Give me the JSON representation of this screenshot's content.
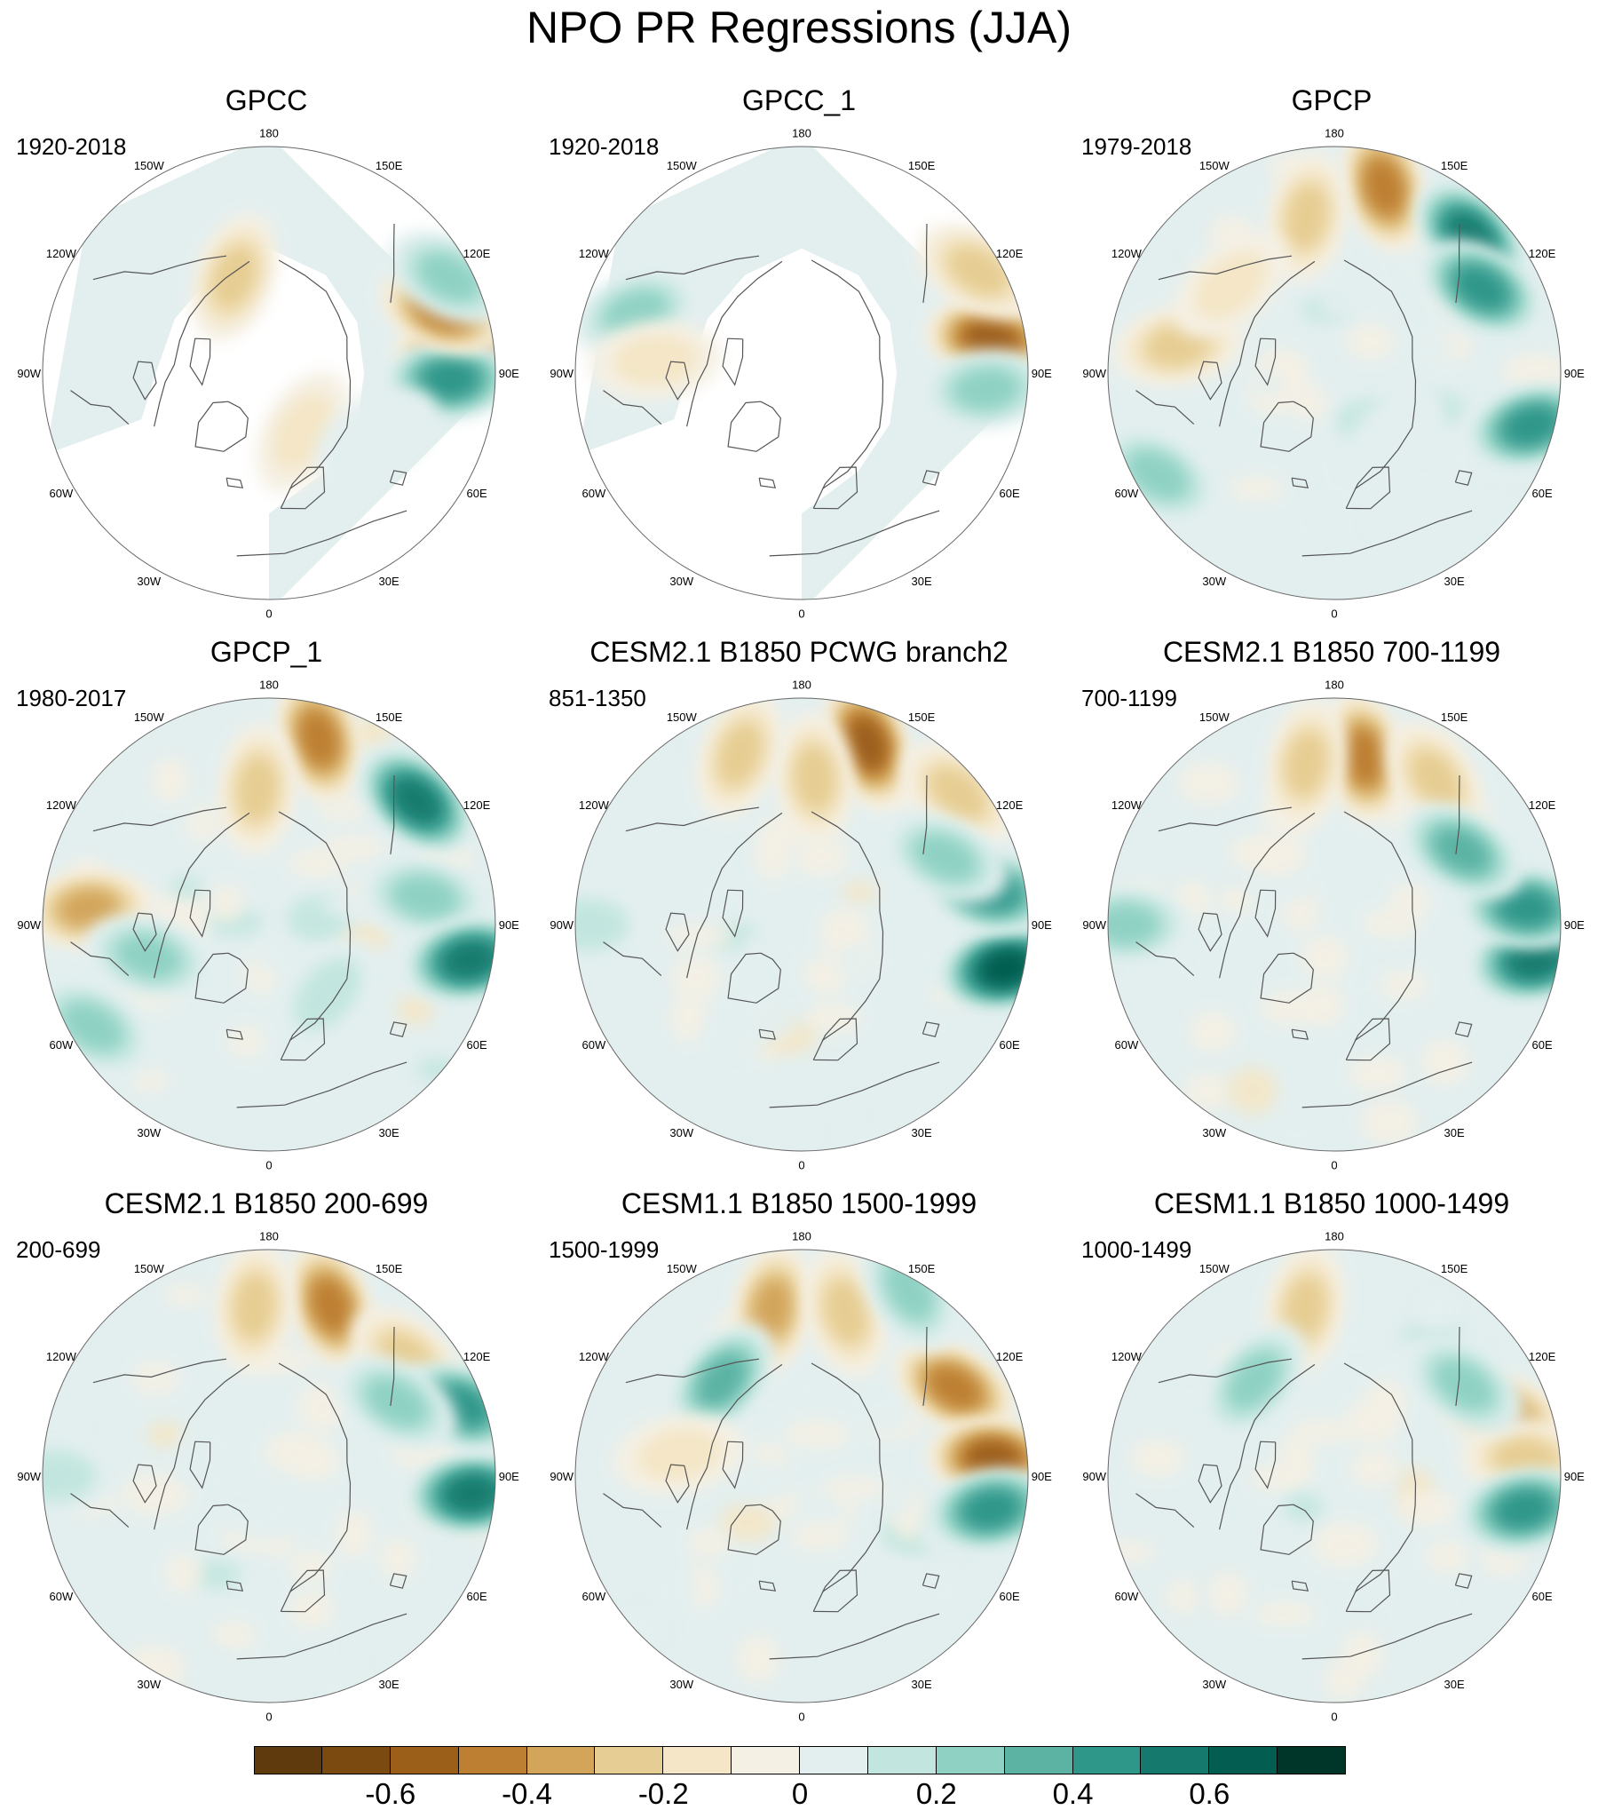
{
  "title": "NPO PR Regressions (JJA)",
  "palette": [
    "#5f3a0c",
    "#7a4a10",
    "#9c5f1a",
    "#bd7f32",
    "#d3a55b",
    "#e6cd93",
    "#f4e6c6",
    "#f5f0e4",
    "#e3efef",
    "#c2e6df",
    "#8fd2c4",
    "#5cb3a4",
    "#2f968a",
    "#157a6d",
    "#035d50",
    "#00362a"
  ],
  "colorbar": {
    "tick_labels": [
      "-0.6",
      "-0.4",
      "-0.2",
      "0",
      "0.2",
      "0.4",
      "0.6"
    ],
    "levels": [
      -0.7,
      -0.6,
      -0.5,
      -0.4,
      -0.3,
      -0.2,
      -0.1,
      0,
      0.1,
      0.2,
      0.3,
      0.4,
      0.5,
      0.6,
      0.7
    ]
  },
  "longitude_labels": [
    "180",
    "150E",
    "120E",
    "90E",
    "60E",
    "30E",
    "0",
    "30W",
    "60W",
    "90W",
    "120W",
    "150W"
  ],
  "panels": [
    {
      "title": "GPCC",
      "period": "1920-2018",
      "land_only": true,
      "anomalies": [
        {
          "lon": 95,
          "r": 0.85,
          "v": -0.6
        },
        {
          "lon": 88,
          "r": 0.8,
          "v": 0.45
        },
        {
          "lon": 110,
          "r": 0.82,
          "v": -0.45
        },
        {
          "lon": 118,
          "r": 0.9,
          "v": 0.3
        },
        {
          "lon": -160,
          "r": 0.45,
          "v": -0.25
        },
        {
          "lon": 30,
          "r": 0.3,
          "v": -0.2
        },
        {
          "lon": 60,
          "r": 0.55,
          "v": 0.1
        }
      ]
    },
    {
      "title": "GPCC_1",
      "period": "1920-2018",
      "land_only": true,
      "anomalies": [
        {
          "lon": 100,
          "r": 0.85,
          "v": -0.55
        },
        {
          "lon": 85,
          "r": 0.82,
          "v": 0.35
        },
        {
          "lon": -110,
          "r": 0.78,
          "v": 0.3
        },
        {
          "lon": -95,
          "r": 0.65,
          "v": -0.2
        },
        {
          "lon": 120,
          "r": 0.9,
          "v": -0.3
        }
      ]
    },
    {
      "title": "GPCP",
      "period": "1979-2018",
      "land_only": false,
      "anomalies": [
        {
          "lon": 165,
          "r": 0.85,
          "v": -0.45
        },
        {
          "lon": -170,
          "r": 0.7,
          "v": -0.3
        },
        {
          "lon": 135,
          "r": 0.85,
          "v": 0.55
        },
        {
          "lon": 120,
          "r": 0.75,
          "v": 0.45
        },
        {
          "lon": 75,
          "r": 0.9,
          "v": 0.5
        },
        {
          "lon": -60,
          "r": 0.9,
          "v": 0.35
        },
        {
          "lon": -100,
          "r": 0.7,
          "v": -0.3
        },
        {
          "lon": -130,
          "r": 0.6,
          "v": -0.2
        },
        {
          "lon": 40,
          "r": 0.4,
          "v": 0.1
        }
      ]
    },
    {
      "title": "GPCP_1",
      "period": "1980-2017",
      "land_only": false,
      "anomalies": [
        {
          "lon": 165,
          "r": 0.85,
          "v": -0.5
        },
        {
          "lon": -175,
          "r": 0.6,
          "v": -0.3
        },
        {
          "lon": 130,
          "r": 0.85,
          "v": 0.55
        },
        {
          "lon": 100,
          "r": 0.7,
          "v": 0.35
        },
        {
          "lon": 80,
          "r": 0.9,
          "v": 0.55
        },
        {
          "lon": -60,
          "r": 0.9,
          "v": 0.35
        },
        {
          "lon": -95,
          "r": 0.8,
          "v": -0.4
        },
        {
          "lon": -75,
          "r": 0.55,
          "v": 0.3
        },
        {
          "lon": 40,
          "r": 0.4,
          "v": 0.2
        }
      ]
    },
    {
      "title": "CESM2.1 B1850 PCWG branch2",
      "period": "851-1350",
      "land_only": false,
      "anomalies": [
        {
          "lon": 160,
          "r": 0.85,
          "v": -0.55
        },
        {
          "lon": 175,
          "r": 0.65,
          "v": -0.35
        },
        {
          "lon": -160,
          "r": 0.8,
          "v": -0.25
        },
        {
          "lon": 130,
          "r": 0.9,
          "v": -0.3
        },
        {
          "lon": 78,
          "r": 0.92,
          "v": 0.65
        },
        {
          "lon": 100,
          "r": 0.85,
          "v": 0.45
        },
        {
          "lon": 115,
          "r": 0.7,
          "v": 0.35
        },
        {
          "lon": -90,
          "r": 0.95,
          "v": 0.2
        }
      ]
    },
    {
      "title": "CESM2.1 B1850 700-1199",
      "period": "700-1199",
      "land_only": false,
      "anomalies": [
        {
          "lon": 170,
          "r": 0.75,
          "v": -0.5
        },
        {
          "lon": -170,
          "r": 0.72,
          "v": -0.35
        },
        {
          "lon": 145,
          "r": 0.78,
          "v": -0.3
        },
        {
          "lon": 80,
          "r": 0.9,
          "v": 0.55
        },
        {
          "lon": 95,
          "r": 0.85,
          "v": 0.45
        },
        {
          "lon": 120,
          "r": 0.65,
          "v": 0.4
        },
        {
          "lon": -90,
          "r": 0.92,
          "v": 0.3
        }
      ]
    },
    {
      "title": "CESM2.1 B1850 200-699",
      "period": "200-699",
      "land_only": false,
      "anomalies": [
        {
          "lon": 160,
          "r": 0.8,
          "v": -0.45
        },
        {
          "lon": -175,
          "r": 0.75,
          "v": -0.3
        },
        {
          "lon": 130,
          "r": 0.8,
          "v": -0.35
        },
        {
          "lon": 85,
          "r": 0.9,
          "v": 0.6
        },
        {
          "lon": 110,
          "r": 0.9,
          "v": 0.5
        },
        {
          "lon": 120,
          "r": 0.65,
          "v": 0.3
        },
        {
          "lon": -90,
          "r": 0.95,
          "v": 0.2
        }
      ]
    },
    {
      "title": "CESM1.1 B1850 1500-1999",
      "period": "1500-1999",
      "land_only": false,
      "anomalies": [
        {
          "lon": -170,
          "r": 0.75,
          "v": -0.4
        },
        {
          "lon": 165,
          "r": 0.75,
          "v": -0.25
        },
        {
          "lon": 120,
          "r": 0.78,
          "v": -0.5
        },
        {
          "lon": 95,
          "r": 0.85,
          "v": -0.6
        },
        {
          "lon": 80,
          "r": 0.85,
          "v": 0.5
        },
        {
          "lon": 150,
          "r": 0.95,
          "v": 0.35
        },
        {
          "lon": -140,
          "r": 0.55,
          "v": 0.4
        },
        {
          "lon": -100,
          "r": 0.55,
          "v": -0.2
        }
      ]
    },
    {
      "title": "CESM1.1 B1850 1000-1499",
      "period": "1000-1499",
      "land_only": false,
      "anomalies": [
        {
          "lon": -170,
          "r": 0.75,
          "v": -0.35
        },
        {
          "lon": 110,
          "r": 0.8,
          "v": -0.4
        },
        {
          "lon": 95,
          "r": 0.85,
          "v": -0.3
        },
        {
          "lon": 80,
          "r": 0.85,
          "v": 0.45
        },
        {
          "lon": -140,
          "r": 0.55,
          "v": 0.3
        },
        {
          "lon": 125,
          "r": 0.7,
          "v": 0.25
        }
      ]
    }
  ]
}
